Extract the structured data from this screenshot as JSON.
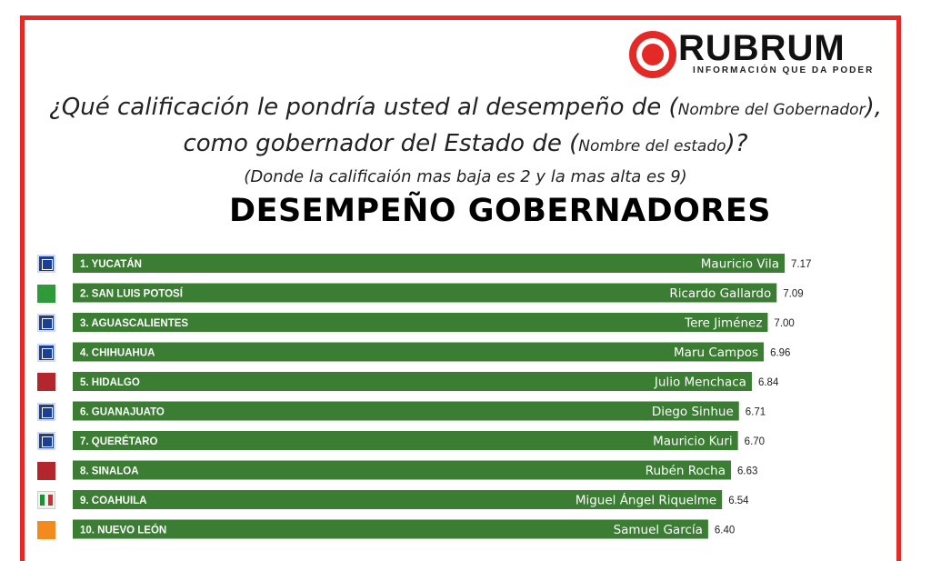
{
  "logo": {
    "name": "RUBRUM",
    "tagline": "INFORMACIÓN QUE DA PODER"
  },
  "question": {
    "line1_main": "¿Qué calificación le pondría usted al desempeño de (",
    "line1_small": "Nombre del Gobernador",
    "line1_end": "),",
    "line2_main": "como gobernador del Estado de (",
    "line2_small": "Nombre del estado",
    "line2_end": ")?",
    "line3": "(Donde la calificaión mas baja es 2 y la mas alta es 9)"
  },
  "colors": {
    "bar": "#3a7d33",
    "frame": "#e32a26"
  },
  "chart_data": {
    "type": "bar",
    "orientation": "horizontal",
    "title": "DESEMPEÑO GOBERNADORES",
    "categories": [
      "1. YUCATÁN",
      "2. SAN LUIS POTOSÍ",
      "3. AGUASCALIENTES",
      "4. CHIHUAHUA",
      "5. HIDALGO",
      "6. GUANAJUATO",
      "7. QUERÉTARO",
      "8. SINALOA",
      "9. COAHUILA",
      "10. NUEVO LEÓN"
    ],
    "governors": [
      "Mauricio Vila",
      "Ricardo Gallardo",
      "Tere Jiménez",
      "Maru Campos",
      "Julio Menchaca",
      "Diego Sinhue",
      "Mauricio Kuri",
      "Rubén Rocha",
      "Miguel Ángel Riquelme",
      "Samuel García"
    ],
    "parties": [
      "pan-icon",
      "verde-icon",
      "pan-icon",
      "pan-icon",
      "morena-icon",
      "pan-icon",
      "pan-icon",
      "morena-icon",
      "pri-icon",
      "mc-icon"
    ],
    "values": [
      7.17,
      7.09,
      7.0,
      6.96,
      6.84,
      6.71,
      6.7,
      6.63,
      6.54,
      6.4
    ],
    "value_labels": [
      "7.17",
      "7.09",
      "7.00",
      "6.96",
      "6.84",
      "6.71",
      "6.70",
      "6.63",
      "6.54",
      "6.40"
    ],
    "xlim": [
      2,
      9
    ],
    "grid": false,
    "legend": "none"
  }
}
